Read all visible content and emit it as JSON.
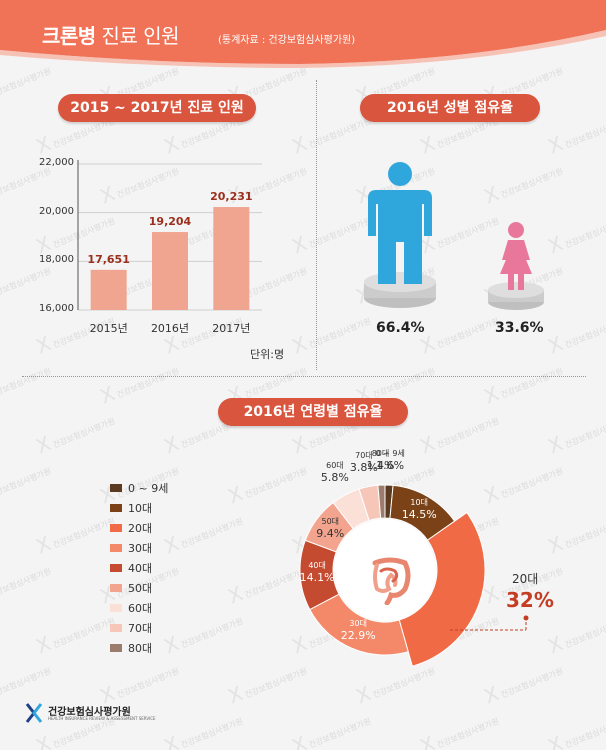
{
  "header": {
    "title_bold": "크론병",
    "title_rest": " 진료 인원",
    "source": "(통계자료 : 건강보험심사평가원)"
  },
  "sections": {
    "patients_title": "2015 ~ 2017년 진료 인원",
    "gender_title": "2016년 성별 점유율",
    "age_title": "2016년 연령별 점유율"
  },
  "watermark": {
    "glyph": "X",
    "text": "건강보험심사평가원"
  },
  "bar_unit": "단위:명",
  "gender": {
    "male_pct": "66.4%",
    "female_pct": "33.6%",
    "male_color": "#2fa6dc",
    "female_color": "#e9779c"
  },
  "callout": {
    "group": "20대",
    "value": "32%"
  },
  "logo": {
    "name": "건강보험심사평가원",
    "sub": "HEALTH INSURANCE REVIEW & ASSESSMENT SERVICE"
  },
  "colors": {
    "header": "#f07358",
    "pill": "#d9553d",
    "bar": "#efa58f",
    "bar_value": "#9b2f1c"
  },
  "chart_data": [
    {
      "type": "bar",
      "title": "2015 ~ 2017년 진료 인원",
      "categories": [
        "2015년",
        "2016년",
        "2017년"
      ],
      "values": [
        17651,
        19204,
        20231
      ],
      "value_labels": [
        "17,651",
        "19,204",
        "20,231"
      ],
      "ylim": [
        16000,
        22000
      ],
      "yticks": [
        16000,
        18000,
        20000,
        22000
      ],
      "ytick_labels": [
        "16,000",
        "18,000",
        "20,000",
        "22,000"
      ],
      "grid": true,
      "unit": "단위:명"
    },
    {
      "type": "pie",
      "title": "2016년 연령별 점유율",
      "legend_position": "left",
      "slices": [
        {
          "label": "0 ~ 9세",
          "value": 1.6,
          "display": "1.6%",
          "color": "#5b3a1f"
        },
        {
          "label": "10대",
          "value": 14.5,
          "display": "14.5%",
          "color": "#7a4216"
        },
        {
          "label": "20대",
          "value": 32,
          "display": "32%",
          "color": "#f06a46"
        },
        {
          "label": "30대",
          "value": 22.9,
          "display": "22.9%",
          "color": "#f4896a"
        },
        {
          "label": "40대",
          "value": 14.1,
          "display": "14.1%",
          "color": "#c44a30"
        },
        {
          "label": "50대",
          "value": 9.4,
          "display": "9.4%",
          "color": "#f2a48e"
        },
        {
          "label": "60대",
          "value": 5.8,
          "display": "5.8%",
          "color": "#fbe0d8"
        },
        {
          "label": "70대",
          "value": 3.8,
          "display": "3.8%",
          "color": "#f6c6b8"
        },
        {
          "label": "80대",
          "value": 1.4,
          "display": "1.4%",
          "color": "#9c7c6c"
        }
      ]
    }
  ]
}
